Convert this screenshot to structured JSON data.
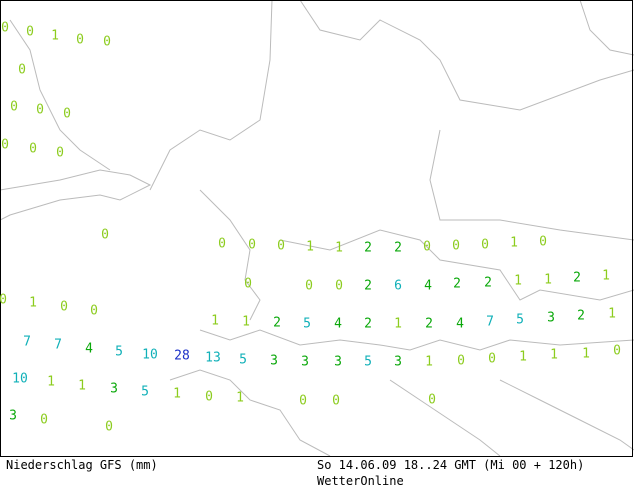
{
  "map": {
    "values": [
      0,
      0,
      1,
      0,
      0,
      0,
      0,
      0,
      0,
      0,
      0,
      0,
      0,
      0,
      0,
      0,
      1,
      1,
      2,
      2,
      0,
      0,
      0,
      1,
      0,
      0,
      0,
      0,
      2,
      6,
      4,
      2,
      2,
      1,
      1,
      2,
      1,
      0,
      1,
      0,
      0,
      1,
      1,
      2,
      5,
      4,
      2,
      1,
      2,
      4,
      7,
      5,
      3,
      2,
      1,
      7,
      7,
      4,
      5,
      10,
      28,
      13,
      5,
      3,
      3,
      3,
      5,
      3,
      1,
      0,
      0,
      1,
      1,
      1,
      0,
      10,
      1,
      1,
      3,
      5,
      1,
      0,
      1,
      0,
      0,
      0,
      3,
      0,
      0
    ]
  },
  "footer": {
    "left": "Niederschlag GFS (mm)",
    "right": "So 14.06.09 18..24 GMT (Mi 00 + 120h)",
    "source": "WetterOnline"
  }
}
